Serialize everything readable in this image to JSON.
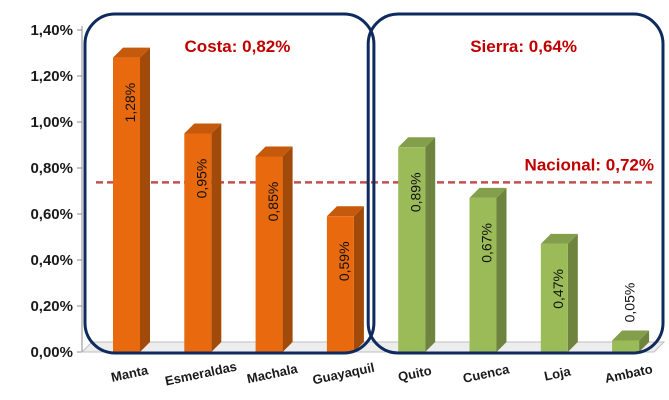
{
  "chart_data": {
    "type": "bar",
    "title": "",
    "xlabel": "",
    "ylabel": "",
    "ylim": [
      0,
      1.4
    ],
    "y_ticks": [
      "0,00%",
      "0,20%",
      "0,40%",
      "0,60%",
      "0,80%",
      "1,00%",
      "1,20%",
      "1,40%"
    ],
    "categories": [
      "Manta",
      "Esmeraldas",
      "Machala",
      "Guayaquil",
      "Quito",
      "Cuenca",
      "Loja",
      "Ambato"
    ],
    "values": [
      1.28,
      0.95,
      0.85,
      0.59,
      0.89,
      0.67,
      0.47,
      0.05
    ],
    "data_labels": [
      "1,28%",
      "0,95%",
      "0,85%",
      "0,59%",
      "0,89%",
      "0,67%",
      "0,47%",
      "0,05%"
    ],
    "groups": [
      {
        "label": "Costa: 0,82%",
        "members": [
          "Manta",
          "Esmeraldas",
          "Machala",
          "Guayaquil"
        ],
        "color": "#e8690e"
      },
      {
        "label": "Sierra: 0,64%",
        "members": [
          "Quito",
          "Cuenca",
          "Loja",
          "Ambato"
        ],
        "color": "#9bbb59"
      }
    ],
    "reference_line": {
      "label": "Nacional: 0,72%",
      "value": 0.72,
      "color": "#c0504d"
    },
    "annotation_color": "#c00000",
    "box_color": "#0f2a5e",
    "grid": false,
    "legend": "none"
  }
}
